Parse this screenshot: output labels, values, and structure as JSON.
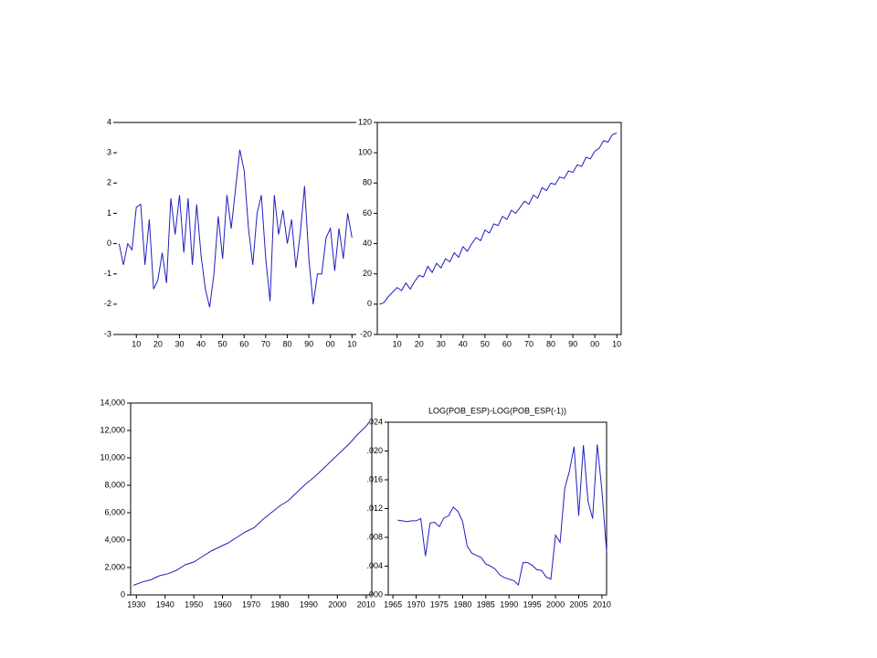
{
  "chart_data": [
    {
      "type": "line",
      "frame": "top",
      "color": "#1f1fbf",
      "x": [
        2,
        4,
        6,
        8,
        10,
        12,
        14,
        16,
        18,
        20,
        22,
        24,
        26,
        28,
        30,
        32,
        34,
        36,
        38,
        40,
        42,
        44,
        46,
        48,
        50,
        52,
        54,
        56,
        58,
        60,
        62,
        64,
        66,
        68,
        70,
        72,
        74,
        76,
        78,
        80,
        82,
        84,
        86,
        88,
        90,
        92,
        94,
        96,
        98,
        100,
        102,
        104,
        106,
        108,
        110
      ],
      "values": [
        0,
        -0.7,
        0,
        -0.2,
        1.2,
        1.3,
        -0.7,
        0.8,
        -1.5,
        -1.2,
        -0.3,
        -1.3,
        1.5,
        0.3,
        1.6,
        -0.3,
        1.5,
        -0.7,
        1.3,
        -0.4,
        -1.5,
        -2.1,
        -1.0,
        0.9,
        -0.5,
        1.6,
        0.5,
        1.8,
        3.1,
        2.4,
        0.5,
        -0.7,
        1.0,
        1.6,
        -0.5,
        -1.9,
        1.6,
        0.3,
        1.1,
        0,
        0.8,
        -0.8,
        0.3,
        1.9,
        -0.5,
        -2.0,
        -1.0,
        -1.0,
        0.2,
        0.5,
        -0.9,
        0.5,
        -0.5,
        1.0,
        0.2
      ],
      "xlim": [
        1,
        112
      ],
      "ylim": [
        -3,
        4
      ],
      "xticks": [
        10,
        20,
        30,
        40,
        50,
        60,
        70,
        80,
        90,
        {
          "value": 100,
          "label": "00"
        },
        {
          "value": 110,
          "label": "10"
        }
      ],
      "yticks": [
        -3,
        -2,
        -1,
        0,
        1,
        2,
        3,
        4
      ]
    },
    {
      "type": "line",
      "frame": "box",
      "color": "#1f1fbf",
      "x": [
        2,
        4,
        6,
        8,
        10,
        12,
        14,
        16,
        18,
        20,
        22,
        24,
        26,
        28,
        30,
        32,
        34,
        36,
        38,
        40,
        42,
        44,
        46,
        48,
        50,
        52,
        54,
        56,
        58,
        60,
        62,
        64,
        66,
        68,
        70,
        72,
        74,
        76,
        78,
        80,
        82,
        84,
        86,
        88,
        90,
        92,
        94,
        96,
        98,
        100,
        102,
        104,
        106,
        108,
        110
      ],
      "values": [
        0,
        1,
        5,
        8,
        11,
        9,
        14,
        10,
        15,
        19,
        18,
        25,
        21,
        27,
        24,
        30,
        28,
        34,
        31,
        38,
        35,
        40,
        44,
        42,
        49,
        47,
        53,
        52,
        58,
        56,
        62,
        60,
        64,
        68,
        66,
        72,
        70,
        77,
        75,
        80,
        79,
        84,
        83,
        88,
        87,
        92,
        91,
        97,
        96,
        101,
        103,
        108,
        107,
        112,
        113
      ],
      "xlim": [
        1,
        112
      ],
      "ylim": [
        -20,
        120
      ],
      "xticks": [
        10,
        20,
        30,
        40,
        50,
        60,
        70,
        80,
        90,
        {
          "value": 100,
          "label": "00"
        },
        {
          "value": 110,
          "label": "10"
        }
      ],
      "yticks": [
        -20,
        0,
        20,
        40,
        60,
        80,
        100,
        120
      ]
    },
    {
      "type": "line",
      "frame": "box",
      "color": "#1f1fbf",
      "x": [
        1929,
        1932,
        1935,
        1938,
        1941,
        1944,
        1947,
        1950,
        1953,
        1956,
        1959,
        1962,
        1965,
        1968,
        1971,
        1974,
        1977,
        1980,
        1983,
        1986,
        1989,
        1992,
        1995,
        1998,
        2001,
        2004,
        2007,
        2010,
        2011
      ],
      "values": [
        700,
        950,
        1100,
        1400,
        1550,
        1800,
        2200,
        2400,
        2800,
        3200,
        3500,
        3800,
        4200,
        4600,
        4900,
        5500,
        6000,
        6500,
        6900,
        7500,
        8100,
        8600,
        9200,
        9800,
        10400,
        11000,
        11700,
        12300,
        12600
      ],
      "xlim": [
        1928,
        2012
      ],
      "ylim": [
        0,
        14000
      ],
      "xticks": [
        1930,
        1940,
        1950,
        1960,
        1970,
        1980,
        1990,
        2000,
        2010
      ],
      "yticks": [
        0,
        {
          "value": 2000,
          "label": "2,000"
        },
        {
          "value": 4000,
          "label": "4,000"
        },
        {
          "value": 6000,
          "label": "6,000"
        },
        {
          "value": 8000,
          "label": "8,000"
        },
        {
          "value": 10000,
          "label": "10,000"
        },
        {
          "value": 12000,
          "label": "12,000"
        },
        {
          "value": 14000,
          "label": "14,000"
        }
      ]
    },
    {
      "type": "line",
      "frame": "box",
      "color": "#1f1fbf",
      "title": "LOG(POB_ESP)-LOG(POB_ESP(-1))",
      "x": [
        1966,
        1967,
        1968,
        1969,
        1970,
        1971,
        1972,
        1973,
        1974,
        1975,
        1976,
        1977,
        1978,
        1979,
        1980,
        1981,
        1982,
        1983,
        1984,
        1985,
        1986,
        1987,
        1988,
        1989,
        1990,
        1991,
        1992,
        1993,
        1994,
        1995,
        1996,
        1997,
        1998,
        1999,
        2000,
        2001,
        2002,
        2003,
        2004,
        2005,
        2006,
        2007,
        2008,
        2009,
        2010,
        2011
      ],
      "values": [
        0.0104,
        0.0103,
        0.0102,
        0.0103,
        0.0103,
        0.0106,
        0.0054,
        0.01,
        0.0101,
        0.0095,
        0.0107,
        0.011,
        0.0122,
        0.0116,
        0.0102,
        0.0068,
        0.0058,
        0.0055,
        0.0052,
        0.0043,
        0.004,
        0.0036,
        0.0028,
        0.0024,
        0.0022,
        0.002,
        0.0014,
        0.0045,
        0.0045,
        0.0041,
        0.0035,
        0.0034,
        0.0025,
        0.0022,
        0.0083,
        0.0073,
        0.0148,
        0.0172,
        0.0206,
        0.011,
        0.0208,
        0.013,
        0.0106,
        0.0209,
        0.0145,
        0.006
      ],
      "xlim": [
        1964,
        2011
      ],
      "ylim": [
        0,
        0.024
      ],
      "xticks": [
        1965,
        1970,
        1975,
        1980,
        1985,
        1990,
        1995,
        2000,
        2005,
        2010
      ],
      "yticks": [
        {
          "value": 0,
          "label": ".000"
        },
        {
          "value": 0.004,
          "label": ".004"
        },
        {
          "value": 0.008,
          "label": ".008"
        },
        {
          "value": 0.012,
          "label": ".012"
        },
        {
          "value": 0.016,
          "label": ".016"
        },
        {
          "value": 0.02,
          "label": ".020"
        },
        {
          "value": 0.024,
          "label": ".024"
        }
      ]
    }
  ]
}
